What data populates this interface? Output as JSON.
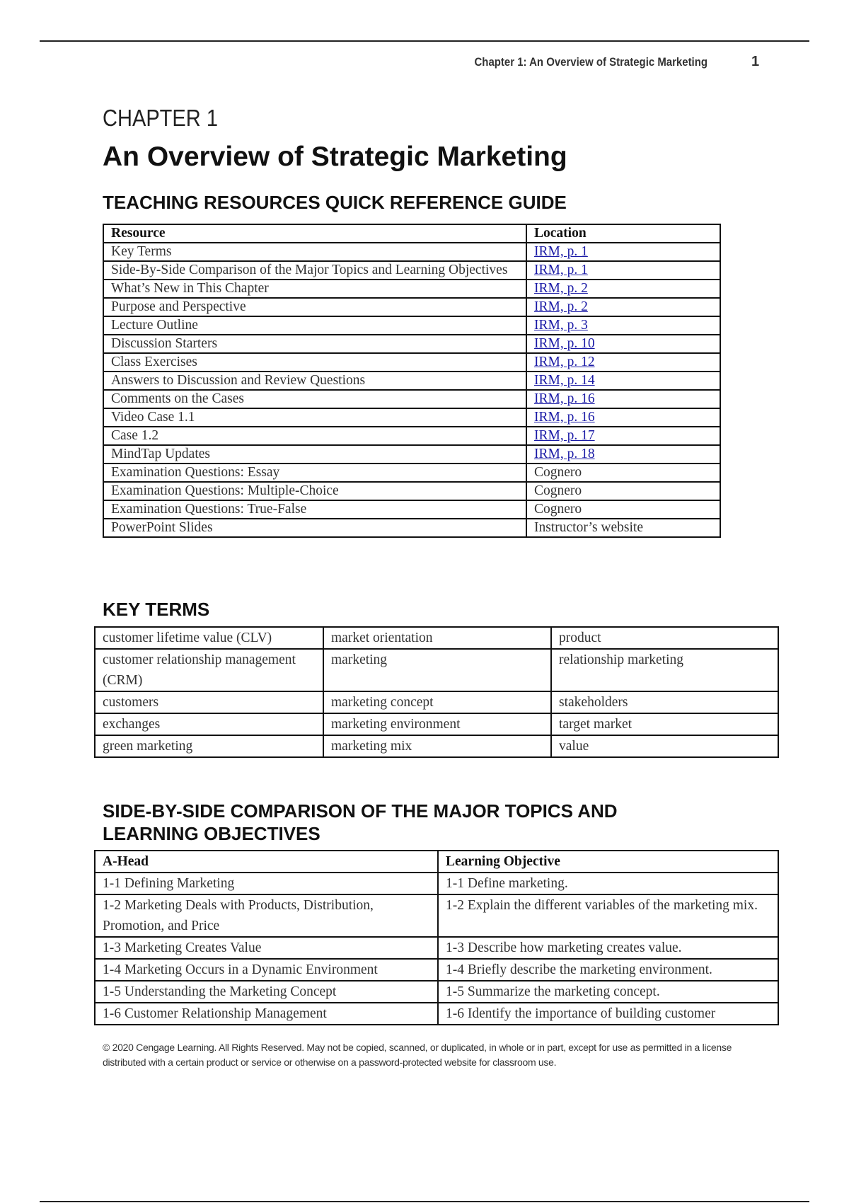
{
  "header": {
    "running_title": "Chapter 1: An Overview of Strategic Marketing",
    "page_number": "1"
  },
  "chapter_label": "CHAPTER 1",
  "title": "An Overview of Strategic Marketing",
  "resources": {
    "heading": "TEACHING RESOURCES QUICK REFERENCE GUIDE",
    "columns": [
      "Resource",
      "Location"
    ],
    "rows": [
      {
        "resource": "Key Terms",
        "location": "IRM, p. 1",
        "link": true
      },
      {
        "resource": "Side-By-Side Comparison of the Major Topics and Learning Objectives",
        "location": "IRM, p. 1",
        "link": true
      },
      {
        "resource": "What’s New in This Chapter",
        "location": "IRM, p. 2",
        "link": true
      },
      {
        "resource": "Purpose and Perspective",
        "location": "IRM, p. 2",
        "link": true
      },
      {
        "resource": "Lecture Outline",
        "location": "IRM, p. 3",
        "link": true
      },
      {
        "resource": "Discussion Starters",
        "location": "IRM, p. 10",
        "link": true
      },
      {
        "resource": "Class Exercises",
        "location": "IRM, p. 12",
        "link": true
      },
      {
        "resource": "Answers to Discussion and Review Questions",
        "location": "IRM, p. 14",
        "link": true
      },
      {
        "resource": "Comments on the Cases",
        "location": "IRM, p. 16",
        "link": true
      },
      {
        "resource": "Video Case 1.1",
        "location": "IRM, p. 16",
        "link": true
      },
      {
        "resource": "Case 1.2",
        "location": "IRM, p. 17",
        "link": true
      },
      {
        "resource": "MindTap Updates",
        "location": "IRM, p. 18",
        "link": true
      },
      {
        "resource": "Examination Questions: Essay",
        "location": "Cognero",
        "link": false
      },
      {
        "resource": "Examination Questions: Multiple-Choice",
        "location": "Cognero",
        "link": false
      },
      {
        "resource": "Examination Questions: True-False",
        "location": "Cognero",
        "link": false
      },
      {
        "resource": "PowerPoint Slides",
        "location": "Instructor’s website",
        "link": false
      }
    ]
  },
  "key_terms": {
    "heading": "KEY TERMS",
    "rows": [
      [
        "customer lifetime value (CLV)",
        "market orientation",
        "product"
      ],
      [
        "customer relationship management (CRM)",
        "marketing",
        "relationship marketing"
      ],
      [
        "customers",
        "marketing concept",
        "stakeholders"
      ],
      [
        "exchanges",
        "marketing environment",
        "target market"
      ],
      [
        "green marketing",
        "marketing mix",
        "value"
      ]
    ]
  },
  "comparison": {
    "heading": "SIDE-BY-SIDE COMPARISON OF THE MAJOR TOPICS AND LEARNING OBJECTIVES",
    "columns": [
      "A-Head",
      "Learning Objective"
    ],
    "rows": [
      [
        "1-1 Defining Marketing",
        "1-1 Define marketing."
      ],
      [
        "1-2 Marketing Deals with Products, Distribution, Promotion, and Price",
        "1-2 Explain the different variables of the marketing mix."
      ],
      [
        "1-3 Marketing Creates Value",
        "1-3 Describe how marketing creates value."
      ],
      [
        "1-4 Marketing Occurs in a Dynamic Environment",
        "1-4 Briefly describe the marketing environment."
      ],
      [
        "1-5 Understanding the Marketing Concept",
        "1-5 Summarize the marketing concept."
      ],
      [
        "1-6 Customer Relationship Management",
        "1-6 Identify the importance of building customer"
      ]
    ]
  },
  "footer": "© 2020 Cengage Learning. All Rights Reserved. May not be copied, scanned, or duplicated, in whole or in part, except for use as permitted in a license distributed with a certain product or service or otherwise on a password-protected website for classroom use."
}
